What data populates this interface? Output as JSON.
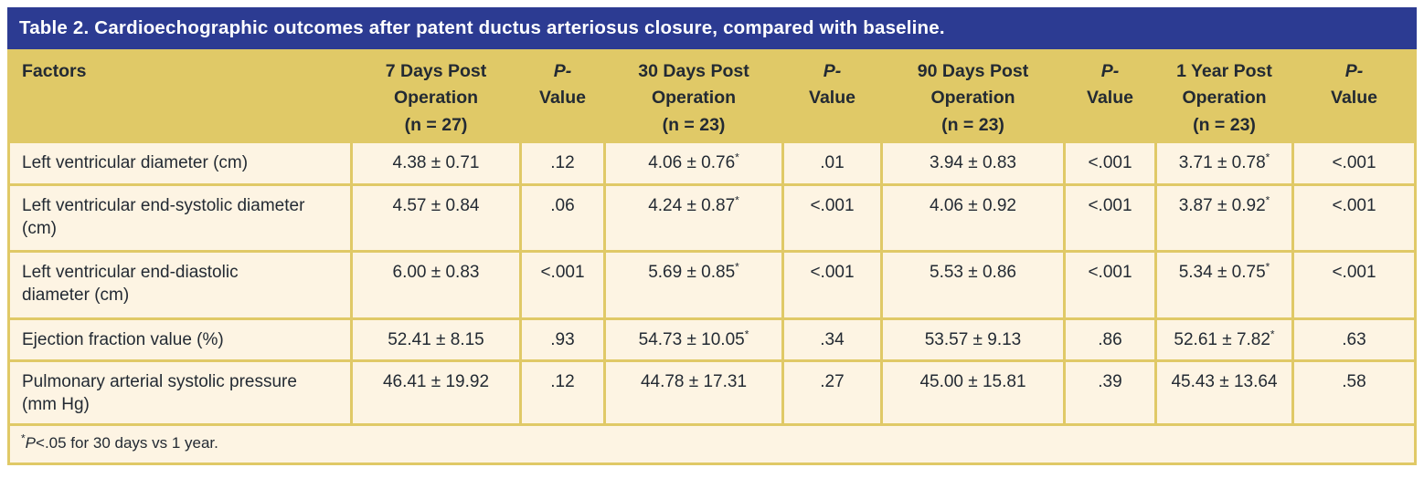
{
  "title": "Table 2. Cardioechographic outcomes after patent ductus arteriosus closure, compared with baseline.",
  "colors": {
    "title_bar_navy": "#2c3b92",
    "header_gold": "#e0c967",
    "cell_cream": "#fdf4e3",
    "text_dark": "#232a33",
    "title_text": "#ffffff"
  },
  "table": {
    "columns": [
      {
        "label": "Factors"
      },
      {
        "lines": [
          "7 Days Post",
          "Operation",
          "(n = 27)"
        ]
      },
      {
        "lines": [
          "P-",
          "Value"
        ],
        "p": true
      },
      {
        "lines": [
          "30 Days Post",
          "Operation",
          "(n = 23)"
        ]
      },
      {
        "lines": [
          "P-",
          "Value"
        ],
        "p": true
      },
      {
        "lines": [
          "90 Days Post",
          "Operation",
          "(n = 23)"
        ]
      },
      {
        "lines": [
          "P-",
          "Value"
        ],
        "p": true
      },
      {
        "lines": [
          "1 Year Post",
          "Operation",
          "(n = 23)"
        ]
      },
      {
        "lines": [
          "P-",
          "Value"
        ],
        "p": true
      }
    ],
    "rows": [
      {
        "factor": "Left ventricular diameter (cm)",
        "values": [
          "4.38 ± 0.71",
          ".12",
          "4.06 ± 0.76*",
          ".01",
          "3.94 ± 0.83",
          "<.001",
          "3.71 ± 0.78*",
          "<.001"
        ]
      },
      {
        "factor": "Left ventricular end-systolic diameter (cm)",
        "values": [
          "4.57 ± 0.84",
          ".06",
          "4.24 ± 0.87*",
          "<.001",
          "4.06 ± 0.92",
          "<.001",
          "3.87 ± 0.92*",
          "<.001"
        ]
      },
      {
        "factor": "Left ventricular end-diastolic diameter (cm)",
        "values": [
          "6.00 ± 0.83",
          "<.001",
          "5.69 ± 0.85*",
          "<.001",
          "5.53 ± 0.86",
          "<.001",
          "5.34 ± 0.75*",
          "<.001"
        ]
      },
      {
        "factor": "Ejection fraction value (%)",
        "values": [
          "52.41 ± 8.15",
          ".93",
          "54.73 ± 10.05*",
          ".34",
          "53.57 ± 9.13",
          ".86",
          "52.61 ± 7.82*",
          ".63"
        ]
      },
      {
        "factor": "Pulmonary arterial systolic pressure (mm Hg)",
        "values": [
          "46.41 ± 19.92",
          ".12",
          "44.78 ± 17.31",
          ".27",
          "45.00 ± 15.81",
          ".39",
          "45.43 ± 13.64",
          ".58"
        ]
      }
    ],
    "footnote": {
      "marker": "*",
      "p": "P",
      "rest": "<.05 for 30 days vs 1 year."
    }
  }
}
